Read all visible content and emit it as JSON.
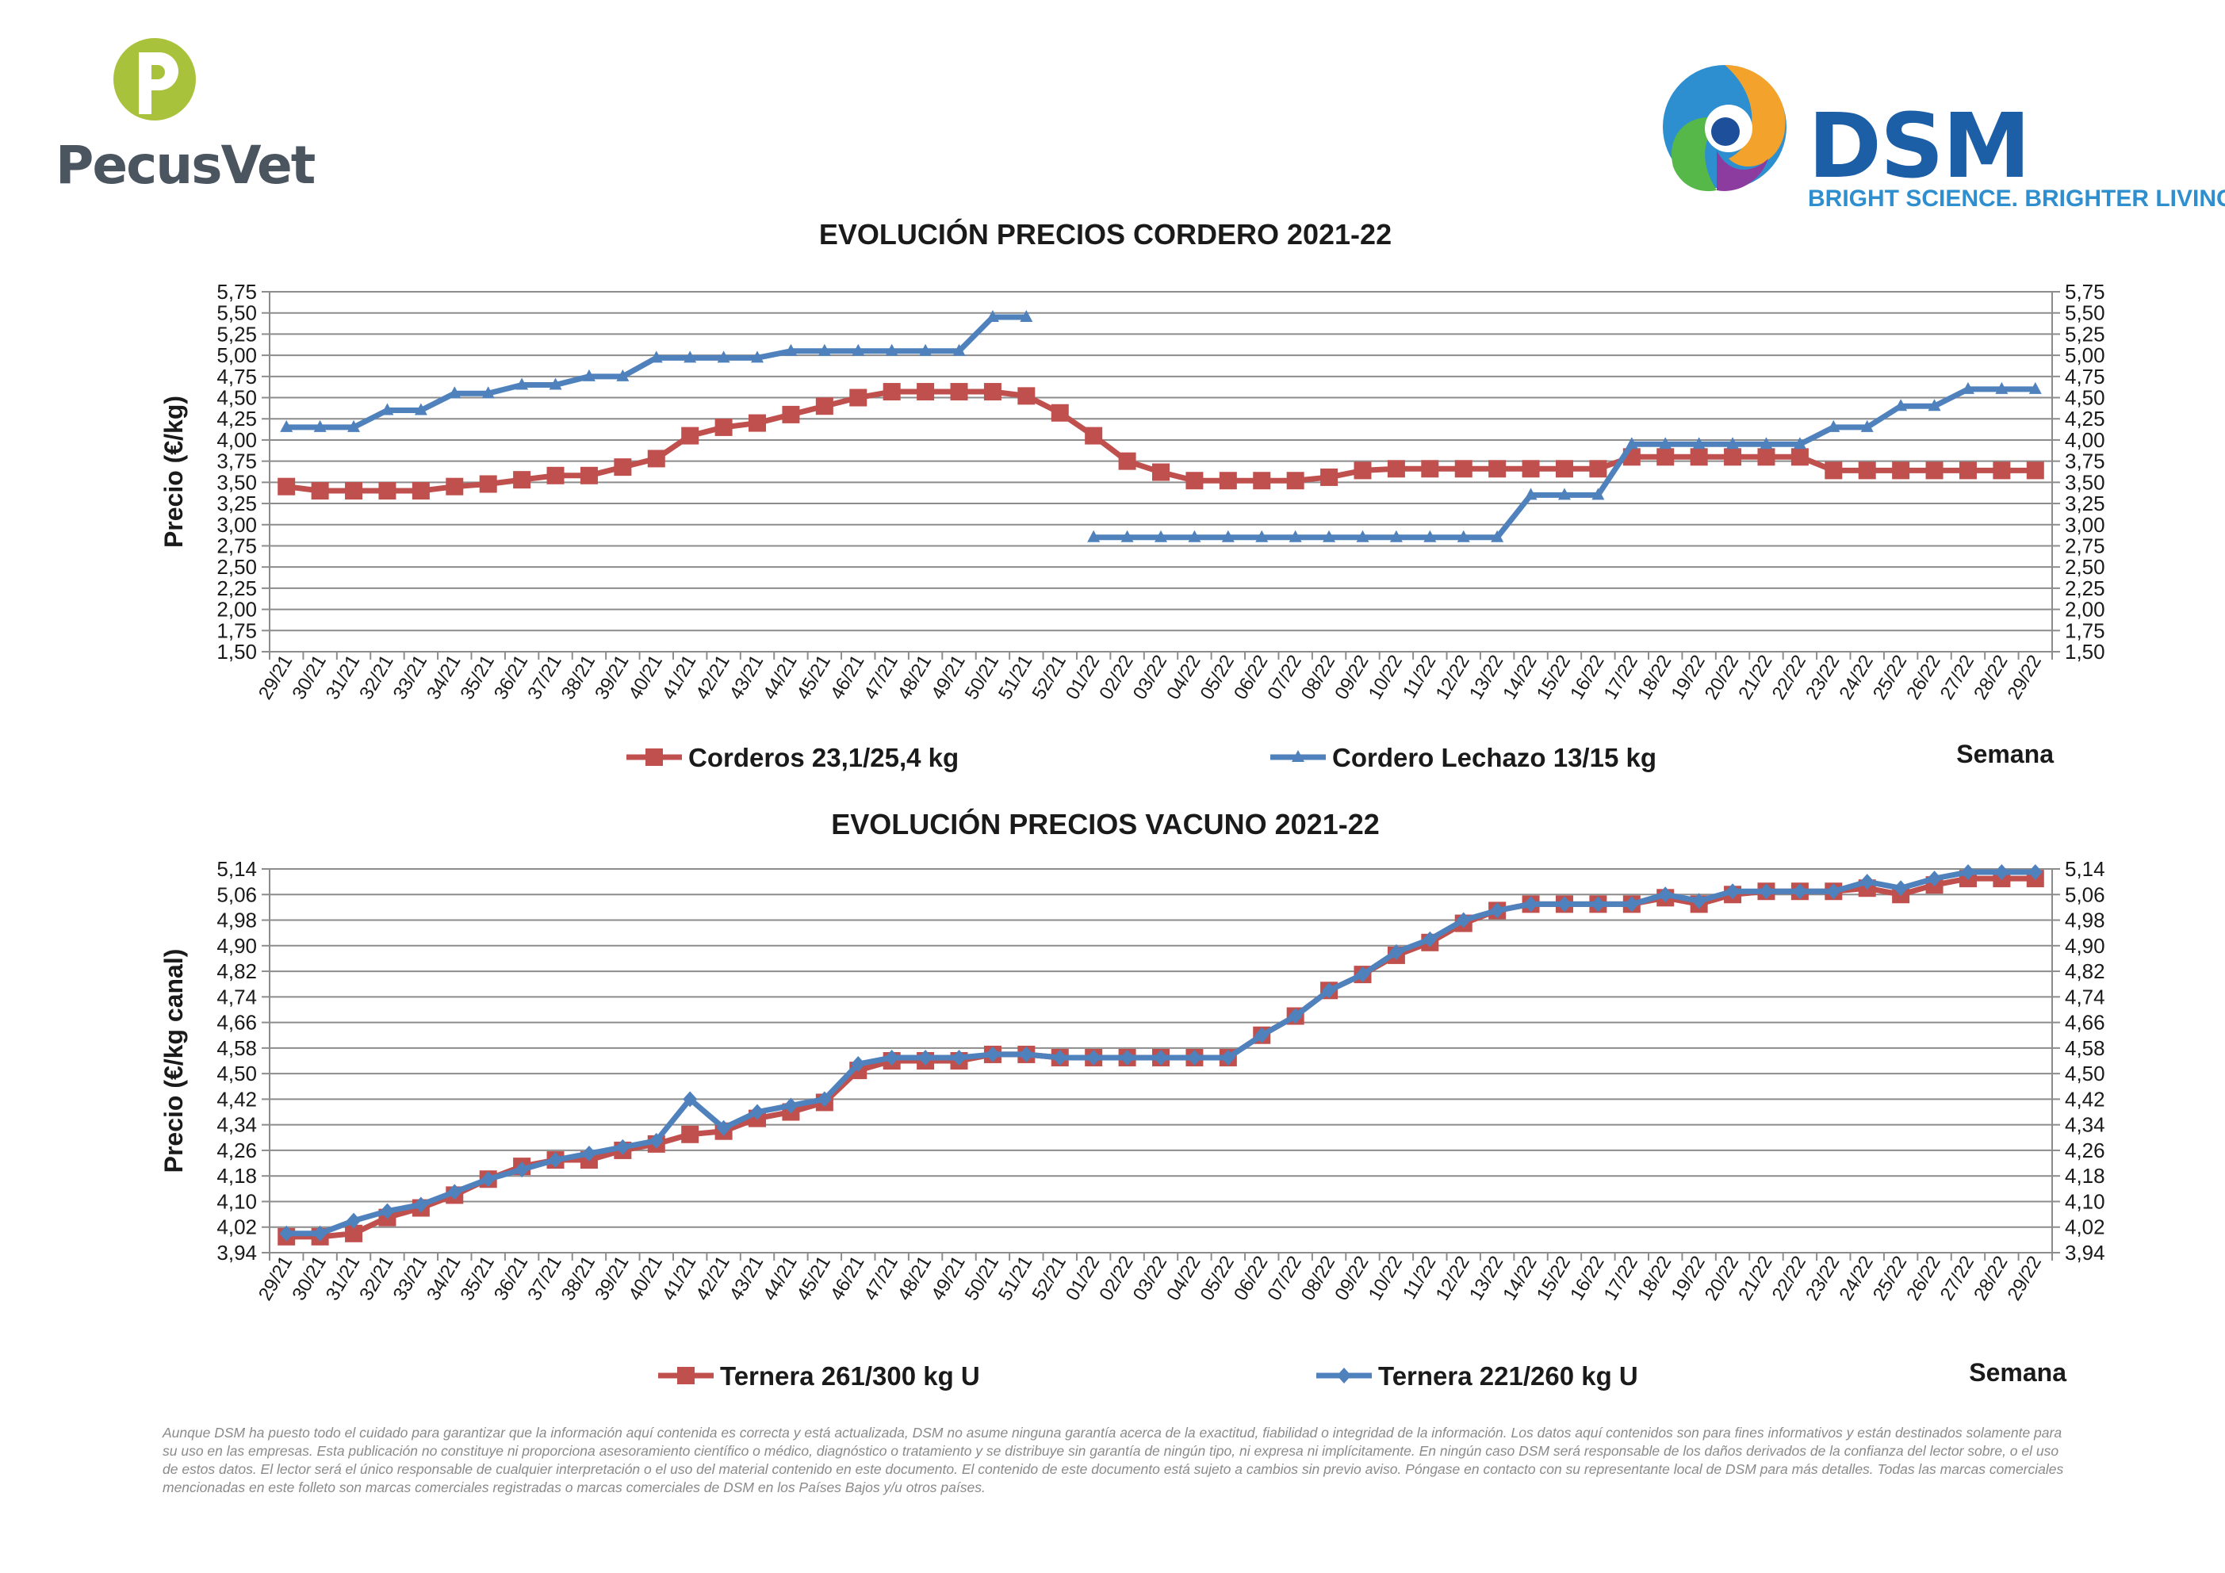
{
  "logos": {
    "pecusvet": {
      "glyph": "P",
      "name": "PecusVet",
      "color_green": "#a9c23b",
      "color_text": "#4a5560"
    },
    "dsm": {
      "name": "DSM",
      "tagline": "BRIGHT SCIENCE. BRIGHTER LIVING.",
      "color_text": "#1c5fa6",
      "color_tag": "#2f8fce"
    }
  },
  "chart_data": [
    {
      "type": "line",
      "title": "EVOLUCIÓN PRECIOS CORDERO 2021-22",
      "ylabel": "Precio (€/kg)",
      "xlabel": "Semana",
      "ylim": [
        1.5,
        5.75
      ],
      "yticks": [
        "1,50",
        "1,75",
        "2,00",
        "2,25",
        "2,50",
        "2,75",
        "3,00",
        "3,25",
        "3,50",
        "3,75",
        "4,00",
        "4,25",
        "4,50",
        "4,75",
        "5,00",
        "5,25",
        "5,50",
        "5,75"
      ],
      "categories": [
        "29/21",
        "30/21",
        "31/21",
        "32/21",
        "33/21",
        "34/21",
        "35/21",
        "36/21",
        "37/21",
        "38/21",
        "39/21",
        "40/21",
        "41/21",
        "42/21",
        "43/21",
        "44/21",
        "45/21",
        "46/21",
        "47/21",
        "48/21",
        "49/21",
        "50/21",
        "51/21",
        "52/21",
        "01/22",
        "02/22",
        "03/22",
        "04/22",
        "05/22",
        "06/22",
        "07/22",
        "08/22",
        "09/22",
        "10/22",
        "11/22",
        "12/22",
        "13/22",
        "14/22",
        "15/22",
        "16/22",
        "17/22",
        "18/22",
        "19/22",
        "20/22",
        "21/22",
        "22/22",
        "23/22",
        "24/22",
        "25/22",
        "26/22",
        "27/22",
        "28/22",
        "29/22"
      ],
      "series": [
        {
          "name": "Corderos 23,1/25,4 kg",
          "color": "#c0504d",
          "marker": "square",
          "values": [
            3.45,
            3.4,
            3.4,
            3.4,
            3.4,
            3.45,
            3.48,
            3.53,
            3.58,
            3.58,
            3.68,
            3.78,
            4.05,
            4.15,
            4.2,
            4.3,
            4.4,
            4.5,
            4.57,
            4.57,
            4.57,
            4.57,
            4.52,
            4.32,
            4.05,
            3.75,
            3.62,
            3.52,
            3.52,
            3.52,
            3.52,
            3.56,
            3.64,
            3.66,
            3.66,
            3.66,
            3.66,
            3.66,
            3.66,
            3.66,
            3.8,
            3.8,
            3.8,
            3.8,
            3.8,
            3.8,
            3.64,
            3.64,
            3.64,
            3.64,
            3.64,
            3.64,
            3.64
          ]
        },
        {
          "name": "Cordero Lechazo 13/15 kg",
          "color": "#4f81bd",
          "marker": "triangle",
          "values": [
            4.15,
            4.15,
            4.15,
            4.35,
            4.35,
            4.55,
            4.55,
            4.65,
            4.65,
            4.75,
            4.75,
            4.97,
            4.97,
            4.97,
            4.97,
            5.05,
            5.05,
            5.05,
            5.05,
            5.05,
            5.05,
            5.45,
            5.45,
            null,
            2.85,
            2.85,
            2.85,
            2.85,
            2.85,
            2.85,
            2.85,
            2.85,
            2.85,
            2.85,
            2.85,
            2.85,
            2.85,
            3.35,
            3.35,
            3.35,
            3.95,
            3.95,
            3.95,
            3.95,
            3.95,
            3.95,
            4.15,
            4.15,
            4.4,
            4.4,
            4.6,
            4.6,
            4.6
          ]
        }
      ]
    },
    {
      "type": "line",
      "title": "EVOLUCIÓN PRECIOS VACUNO 2021-22",
      "ylabel": "Precio (€/kg canal)",
      "xlabel": "Semana",
      "ylim": [
        3.94,
        5.14
      ],
      "yticks": [
        "3,94",
        "4,02",
        "4,10",
        "4,18",
        "4,26",
        "4,34",
        "4,42",
        "4,50",
        "4,58",
        "4,66",
        "4,74",
        "4,82",
        "4,90",
        "4,98",
        "5,06",
        "5,14"
      ],
      "categories": [
        "29/21",
        "30/21",
        "31/21",
        "32/21",
        "33/21",
        "34/21",
        "35/21",
        "36/21",
        "37/21",
        "38/21",
        "39/21",
        "40/21",
        "41/21",
        "42/21",
        "43/21",
        "44/21",
        "45/21",
        "46/21",
        "47/21",
        "48/21",
        "49/21",
        "50/21",
        "51/21",
        "52/21",
        "01/22",
        "02/22",
        "03/22",
        "04/22",
        "05/22",
        "06/22",
        "07/22",
        "08/22",
        "09/22",
        "10/22",
        "11/22",
        "12/22",
        "13/22",
        "14/22",
        "15/22",
        "16/22",
        "17/22",
        "18/22",
        "19/22",
        "20/22",
        "21/22",
        "22/22",
        "23/22",
        "24/22",
        "25/22",
        "26/22",
        "27/22",
        "28/22",
        "29/22"
      ],
      "series": [
        {
          "name": "Ternera 261/300 kg U",
          "color": "#c0504d",
          "marker": "square",
          "values": [
            3.99,
            3.99,
            4.0,
            4.05,
            4.08,
            4.12,
            4.17,
            4.21,
            4.23,
            4.23,
            4.26,
            4.28,
            4.31,
            4.32,
            4.36,
            4.38,
            4.41,
            4.51,
            4.54,
            4.54,
            4.54,
            4.56,
            4.56,
            4.55,
            4.55,
            4.55,
            4.55,
            4.55,
            4.55,
            4.62,
            4.68,
            4.76,
            4.81,
            4.87,
            4.91,
            4.97,
            5.01,
            5.03,
            5.03,
            5.03,
            5.03,
            5.05,
            5.03,
            5.06,
            5.07,
            5.07,
            5.07,
            5.08,
            5.06,
            5.09,
            5.11,
            5.11,
            5.11
          ]
        },
        {
          "name": "Ternera 221/260 kg U",
          "color": "#4f81bd",
          "marker": "diamond",
          "values": [
            4.0,
            4.0,
            4.04,
            4.07,
            4.09,
            4.13,
            4.17,
            4.2,
            4.23,
            4.25,
            4.27,
            4.29,
            4.42,
            4.33,
            4.38,
            4.4,
            4.42,
            4.53,
            4.55,
            4.55,
            4.55,
            4.56,
            4.56,
            4.55,
            4.55,
            4.55,
            4.55,
            4.55,
            4.55,
            4.62,
            4.68,
            4.76,
            4.81,
            4.88,
            4.92,
            4.98,
            5.01,
            5.03,
            5.03,
            5.03,
            5.03,
            5.06,
            5.04,
            5.07,
            5.07,
            5.07,
            5.07,
            5.1,
            5.08,
            5.11,
            5.13,
            5.13,
            5.13
          ]
        }
      ]
    }
  ],
  "disclaimer": "Aunque DSM ha puesto todo el cuidado para garantizar que la información aquí contenida es correcta y está actualizada, DSM no asume ninguna garantía acerca de la exactitud, fiabilidad o integridad de la información. Los datos aquí contenidos son para fines informativos y están destinados solamente para su uso en las empresas. Esta publicación no constituye ni proporciona asesoramiento científico o médico, diagnóstico o tratamiento y se distribuye sin garantía de ningún tipo, ni expresa ni implícitamente. En ningún caso DSM será responsable de los daños derivados de la confianza del lector sobre, o el uso de estos datos. El lector será el único responsable de cualquier interpretación o el uso del material contenido en este documento. El contenido de este documento está sujeto a cambios sin previo aviso. Póngase en contacto con su representante local de DSM para más detalles. Todas las marcas comerciales mencionadas en este folleto son marcas comerciales registradas o marcas comerciales de DSM en los Países Bajos y/u otros países."
}
